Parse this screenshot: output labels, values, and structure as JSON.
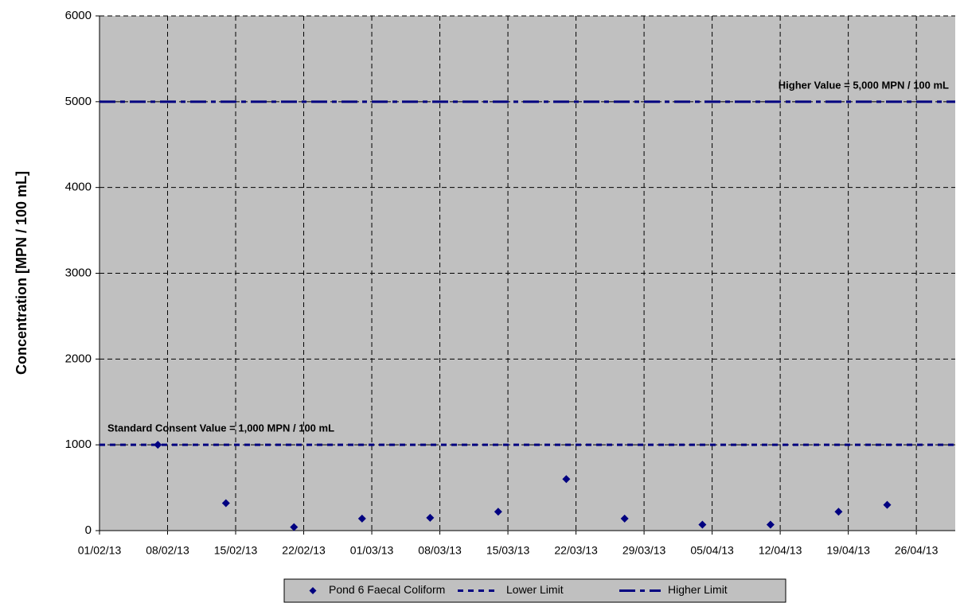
{
  "chart_data": {
    "type": "scatter",
    "ylabel": "Concentration [MPN / 100 mL]",
    "xlim": [
      "2013-02-01",
      "2013-04-30"
    ],
    "xticks": [
      {
        "value": "2013-02-01",
        "label": "01/02/13"
      },
      {
        "value": "2013-02-08",
        "label": "08/02/13"
      },
      {
        "value": "2013-02-15",
        "label": "15/02/13"
      },
      {
        "value": "2013-02-22",
        "label": "22/02/13"
      },
      {
        "value": "2013-03-01",
        "label": "01/03/13"
      },
      {
        "value": "2013-03-08",
        "label": "08/03/13"
      },
      {
        "value": "2013-03-15",
        "label": "15/03/13"
      },
      {
        "value": "2013-03-22",
        "label": "22/03/13"
      },
      {
        "value": "2013-03-29",
        "label": "29/03/13"
      },
      {
        "value": "2013-04-05",
        "label": "05/04/13"
      },
      {
        "value": "2013-04-12",
        "label": "12/04/13"
      },
      {
        "value": "2013-04-19",
        "label": "19/04/13"
      },
      {
        "value": "2013-04-26",
        "label": "26/04/13"
      }
    ],
    "ylim": [
      0,
      6000
    ],
    "yticks": [
      0,
      1000,
      2000,
      3000,
      4000,
      5000,
      6000
    ],
    "grid": true,
    "background": "#c0c0c0",
    "series": [
      {
        "name": "Pond 6 Faecal Coliform",
        "color": "#000080",
        "marker": "diamond",
        "x": [
          "2013-02-07",
          "2013-02-14",
          "2013-02-21",
          "2013-02-28",
          "2013-03-07",
          "2013-03-14",
          "2013-03-21",
          "2013-03-27",
          "2013-04-04",
          "2013-04-11",
          "2013-04-18",
          "2013-04-23"
        ],
        "values": [
          1000,
          320,
          40,
          140,
          150,
          220,
          600,
          140,
          70,
          70,
          220,
          300
        ]
      },
      {
        "name": "Lower Limit",
        "color": "#000080",
        "style": "dotted",
        "value": 1000,
        "annotation": "Standard Consent Value = 1,000 MPN / 100 mL"
      },
      {
        "name": "Higher Limit",
        "color": "#000080",
        "style": "dashdot",
        "value": 5000,
        "annotation": "Higher Value = 5,000 MPN / 100 mL"
      }
    ],
    "legend": "bottom"
  }
}
